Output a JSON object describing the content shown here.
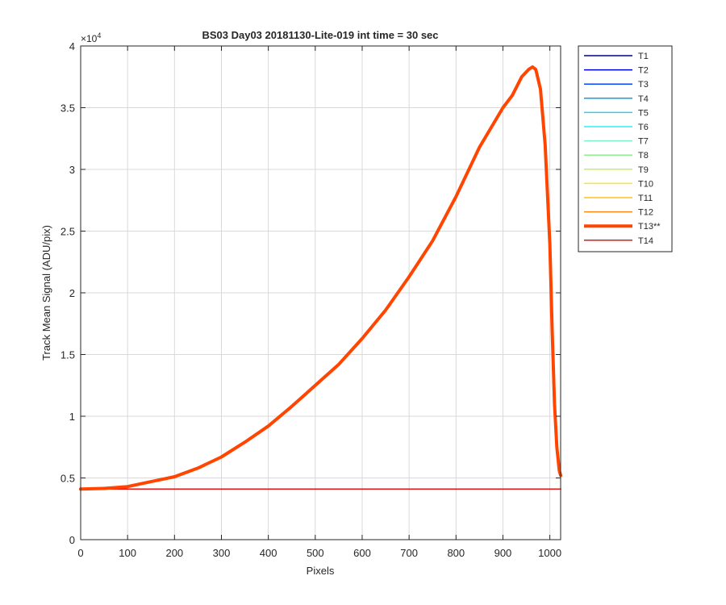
{
  "chart_data": {
    "type": "line",
    "title": "BS03 Day03 20181130-Lite-019 int time = 30 sec",
    "xlabel": "Pixels",
    "ylabel": "Track Mean Signal (ADU/pix)",
    "y_exponent_label": "×10",
    "y_exponent_power": "4",
    "xlim": [
      0,
      1023
    ],
    "ylim": [
      0,
      40000
    ],
    "x_ticks": [
      0,
      100,
      200,
      300,
      400,
      500,
      600,
      700,
      800,
      900,
      1000
    ],
    "x_tick_labels": [
      "0",
      "100",
      "200",
      "300",
      "400",
      "500",
      "600",
      "700",
      "800",
      "900",
      "1000"
    ],
    "y_ticks": [
      0,
      5000,
      10000,
      15000,
      20000,
      25000,
      30000,
      35000,
      40000
    ],
    "y_tick_labels": [
      "0",
      "0.5",
      "1",
      "1.5",
      "2",
      "2.5",
      "3",
      "3.5",
      "4"
    ],
    "grid": true,
    "legend_position": "outside-top-right",
    "series": [
      {
        "name": "T1",
        "color": "#00008f",
        "width": 1.5,
        "x": [
          0,
          1023
        ],
        "y": [
          4100,
          4100
        ]
      },
      {
        "name": "T2",
        "color": "#0000e8",
        "width": 1.5,
        "x": [
          0,
          1023
        ],
        "y": [
          4100,
          4100
        ]
      },
      {
        "name": "T3",
        "color": "#0047ff",
        "width": 1.5,
        "x": [
          0,
          1023
        ],
        "y": [
          4100,
          4100
        ]
      },
      {
        "name": "T4",
        "color": "#00a0ff",
        "width": 1.5,
        "x": [
          0,
          1023
        ],
        "y": [
          4100,
          4100
        ]
      },
      {
        "name": "T5",
        "color": "#28d0ff",
        "width": 1.5,
        "x": [
          0,
          1023
        ],
        "y": [
          4100,
          4100
        ]
      },
      {
        "name": "T6",
        "color": "#30f0f0",
        "width": 1.5,
        "x": [
          0,
          1023
        ],
        "y": [
          4100,
          4100
        ]
      },
      {
        "name": "T7",
        "color": "#7ff0c8",
        "width": 1.5,
        "x": [
          0,
          1023
        ],
        "y": [
          4100,
          4100
        ]
      },
      {
        "name": "T8",
        "color": "#8ef08e",
        "width": 1.5,
        "x": [
          0,
          1023
        ],
        "y": [
          4100,
          4100
        ]
      },
      {
        "name": "T9",
        "color": "#c8f05a",
        "width": 1.5,
        "x": [
          0,
          1023
        ],
        "y": [
          4100,
          4100
        ]
      },
      {
        "name": "T10",
        "color": "#ffe81a",
        "width": 1.5,
        "x": [
          0,
          1023
        ],
        "y": [
          4100,
          4100
        ]
      },
      {
        "name": "T11",
        "color": "#ffc020",
        "width": 1.5,
        "x": [
          0,
          1023
        ],
        "y": [
          4100,
          4100
        ]
      },
      {
        "name": "T12",
        "color": "#ff8a1a",
        "width": 1.5,
        "x": [
          0,
          1023
        ],
        "y": [
          4100,
          4100
        ]
      },
      {
        "name": "T13**",
        "color": "#ff4500",
        "width": 4,
        "x": [
          0,
          50,
          100,
          150,
          200,
          250,
          300,
          350,
          400,
          450,
          500,
          550,
          600,
          650,
          700,
          750,
          800,
          850,
          900,
          920,
          940,
          955,
          963,
          970,
          980,
          990,
          1000,
          1005,
          1010,
          1015,
          1020,
          1023
        ],
        "y": [
          4100,
          4150,
          4300,
          4700,
          5100,
          5800,
          6700,
          7900,
          9200,
          10800,
          12500,
          14200,
          16300,
          18600,
          21300,
          24200,
          27800,
          31800,
          35000,
          36000,
          37500,
          38100,
          38300,
          38100,
          36500,
          32000,
          24000,
          17000,
          11000,
          7500,
          5600,
          5200
        ]
      },
      {
        "name": "T14",
        "color": "#ee1111",
        "width": 1.5,
        "x": [
          0,
          1023
        ],
        "y": [
          4100,
          4100
        ]
      }
    ]
  }
}
